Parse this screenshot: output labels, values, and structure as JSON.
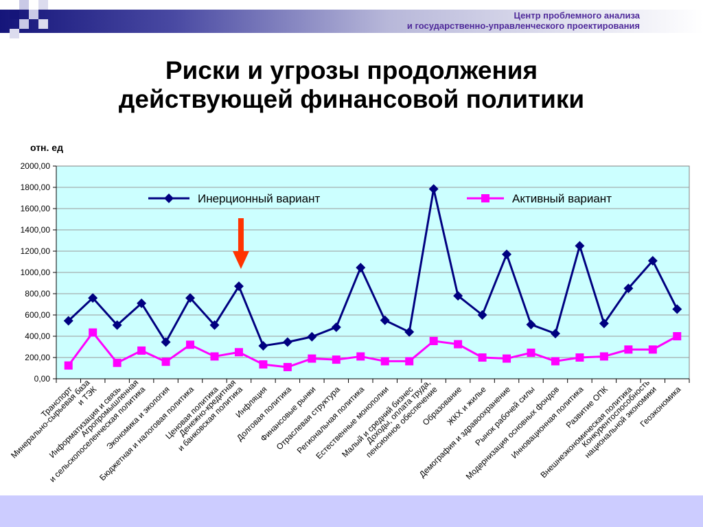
{
  "header": {
    "org_line1": "Центр проблемного анализа",
    "org_line2": "и государственно-управленческого проектирования"
  },
  "title_line1": "Риски и угрозы продолжения",
  "title_line2": "действующей финансовой политики",
  "colors": {
    "inertial": "#000080",
    "active": "#ff00ff",
    "plot_background": "#ccffff",
    "arrow": "#ff3300",
    "header_dark": "#15157a",
    "org_text": "#4f2a9a",
    "footer": "#ccccff"
  },
  "chart_data": {
    "type": "line",
    "ylabel": "отн. ед",
    "ylim": [
      0,
      2000
    ],
    "yticks": [
      "0,00",
      "200,00",
      "400,00",
      "600,00",
      "800,00",
      "1000,00",
      "1200,00",
      "1400,00",
      "1600,00",
      "1800,00",
      "2000,00"
    ],
    "grid": true,
    "legend_position": "top",
    "highlight_arrow_category_index": 7,
    "categories": [
      [
        "Транспорт"
      ],
      [
        "Минерально-сырьевая база",
        "и ТЭК"
      ],
      [
        "Информатизация и связь"
      ],
      [
        "Агропромышленная",
        "и сельскопоселенческая политика"
      ],
      [
        "Экономика и экология"
      ],
      [
        "Бюджетная и налоговая политика"
      ],
      [
        "Ценовая политика"
      ],
      [
        "Денежно-кредитная",
        "и банковская политика"
      ],
      [
        "Инфляция"
      ],
      [
        "Долговая политика"
      ],
      [
        "Финансовые рынки"
      ],
      [
        "Отраслевая структура"
      ],
      [
        "Региональная политика"
      ],
      [
        "Естественные монополии"
      ],
      [
        "Малый и средний бизнес"
      ],
      [
        "Доходы, оплата труда,",
        "пенсионное обеспечение"
      ],
      [
        "Образование"
      ],
      [
        "ЖКХ и жилье"
      ],
      [
        "Демография и здравоохранение"
      ],
      [
        "Рынок рабочей силы"
      ],
      [
        "Модернизация основных фондов"
      ],
      [
        "Инновационная политика"
      ],
      [
        "Развитие ОПК"
      ],
      [
        "Внешнеэкономическая политика"
      ],
      [
        "Конкурентоспособность",
        "национальной экономики"
      ],
      [
        "Геоэкономика"
      ]
    ],
    "series": [
      {
        "name": "Инерционный вариант",
        "marker": "diamond",
        "values": [
          545,
          760,
          505,
          710,
          345,
          760,
          505,
          870,
          310,
          345,
          395,
          485,
          1045,
          550,
          440,
          1785,
          780,
          600,
          1170,
          510,
          425,
          1250,
          520,
          850,
          1110,
          655
        ]
      },
      {
        "name": "Активный вариант",
        "marker": "square",
        "values": [
          125,
          435,
          150,
          265,
          160,
          320,
          210,
          250,
          135,
          110,
          190,
          180,
          210,
          165,
          165,
          355,
          325,
          200,
          190,
          245,
          165,
          200,
          210,
          275,
          275,
          400
        ]
      }
    ]
  }
}
